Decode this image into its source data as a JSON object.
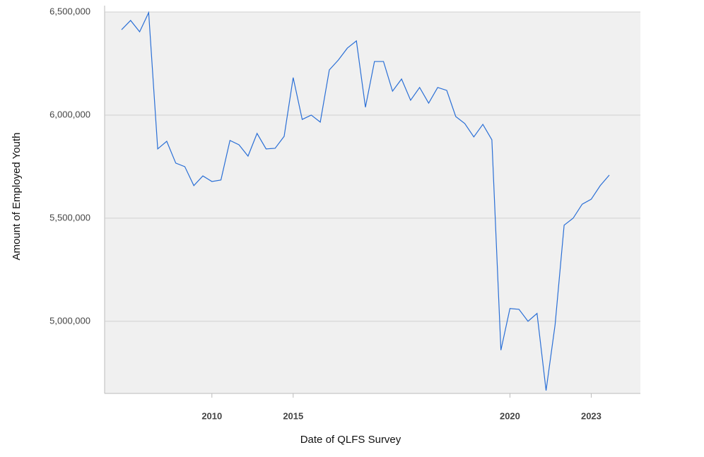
{
  "chart_data": {
    "type": "line",
    "x_label": "Date of QLFS Survey",
    "y_label": "Amount of Employed Youth",
    "categories": [
      null,
      null,
      null,
      null,
      null,
      null,
      null,
      null,
      null,
      null,
      "2010",
      null,
      null,
      null,
      null,
      null,
      null,
      null,
      null,
      "2015",
      null,
      null,
      null,
      null,
      null,
      null,
      null,
      null,
      null,
      null,
      null,
      null,
      null,
      null,
      null,
      null,
      null,
      null,
      null,
      null,
      null,
      null,
      null,
      "2020",
      null,
      null,
      null,
      null,
      null,
      null,
      null,
      null,
      "2023",
      null,
      null
    ],
    "series": [
      {
        "name": "Amount of Employed Youth",
        "color": "#2a6fd6",
        "values": [
          6414000,
          6459000,
          6404000,
          6497000,
          5836000,
          5873000,
          5767000,
          5750000,
          5658000,
          5705000,
          5678000,
          5685000,
          5877000,
          5856000,
          5801000,
          5911000,
          5836000,
          5839000,
          5897000,
          6182000,
          5979000,
          6000000,
          5966000,
          6219000,
          6267000,
          6325000,
          6360000,
          6038000,
          6260000,
          6260000,
          6116000,
          6175000,
          6072000,
          6134000,
          6058000,
          6134000,
          6120000,
          5993000,
          5959000,
          5894000,
          5955000,
          5880000,
          4860000,
          5062000,
          5058000,
          5000000,
          5038000,
          4664000,
          4983000,
          5466000,
          5500000,
          5568000,
          5592000,
          5658000,
          5709000
        ]
      }
    ],
    "ylim": [
      4650000,
      6500000
    ],
    "yticks": [
      {
        "value": 5000000,
        "label": "5,000,000"
      },
      {
        "value": 5500000,
        "label": "5,500,000"
      },
      {
        "value": 6000000,
        "label": "6,000,000"
      },
      {
        "value": 6500000,
        "label": "6,500,000"
      }
    ],
    "grid": true
  }
}
